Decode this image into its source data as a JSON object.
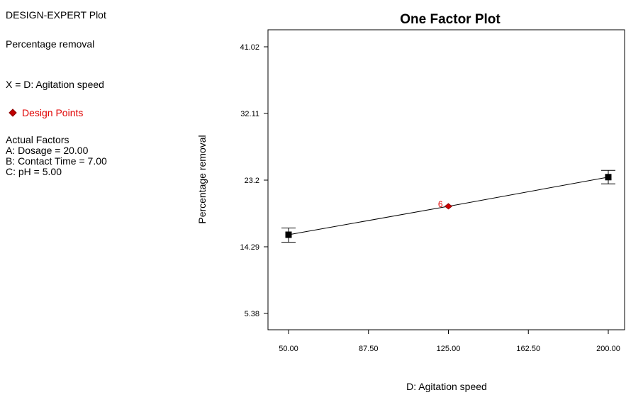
{
  "sidebar": {
    "app_title": "DESIGN-EXPERT Plot",
    "response_name": "Percentage removal",
    "x_factor": "X = D: Agitation speed",
    "design_points_label": "Design Points",
    "actual_factors_heading": "Actual Factors",
    "actual_factors": [
      "A: Dosage = 20.00",
      "B: Contact Time = 7.00",
      "C: pH = 5.00"
    ]
  },
  "colors": {
    "line": "#000000",
    "design_point": "#cc0000",
    "design_point_label": "#e00000"
  },
  "chart_data": {
    "type": "line",
    "title": "One Factor Plot",
    "xlabel": "D: Agitation speed",
    "ylabel": "Percentage removal",
    "x_ticks": [
      "50.00",
      "87.50",
      "125.00",
      "162.50",
      "200.00"
    ],
    "y_ticks": [
      "5.38",
      "14.29",
      "23.2",
      "32.11",
      "41.02"
    ],
    "xlim": [
      50,
      200
    ],
    "ylim": [
      5.38,
      41.02
    ],
    "series": [
      {
        "x": [
          50,
          125,
          200
        ],
        "y": [
          15.9,
          19.7,
          23.6
        ]
      }
    ],
    "error_bars": [
      {
        "x": 50,
        "y": 15.9,
        "low": 14.9,
        "high": 16.8
      },
      {
        "x": 200,
        "y": 23.6,
        "low": 22.7,
        "high": 24.5
      }
    ],
    "design_points": [
      {
        "x": 125,
        "y": 19.7,
        "label": "6"
      }
    ]
  }
}
